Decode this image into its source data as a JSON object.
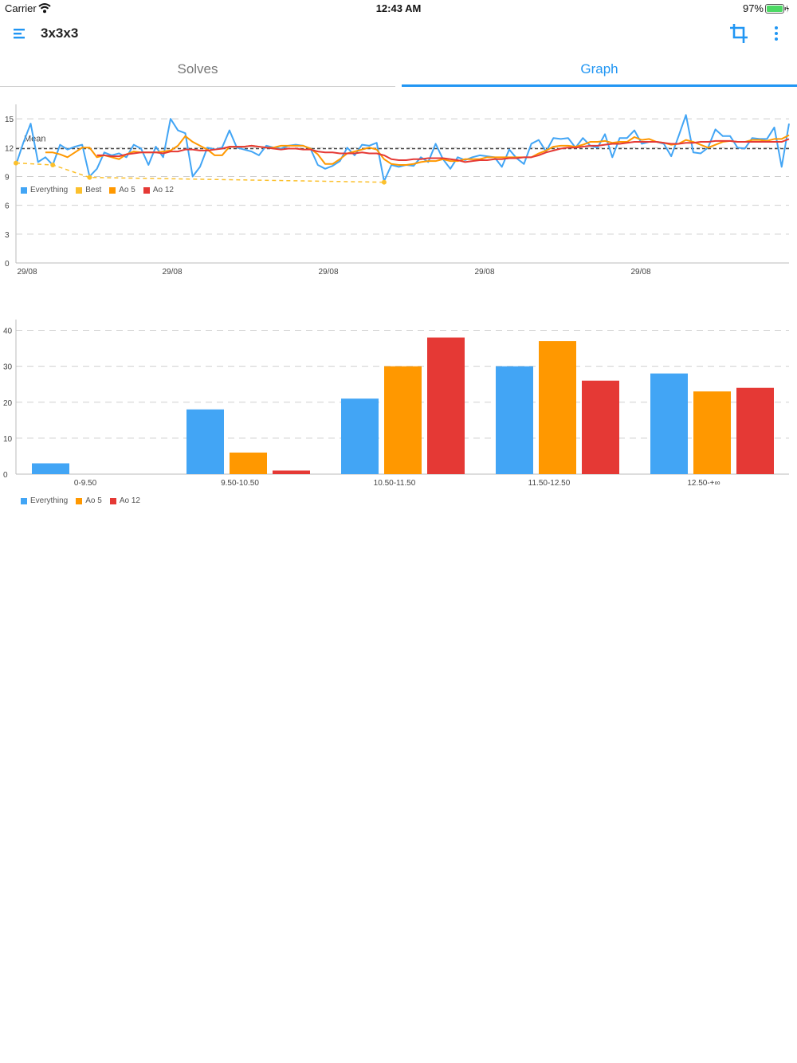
{
  "status_bar": {
    "carrier": "Carrier",
    "time": "12:43 AM",
    "battery": "97%"
  },
  "app_bar": {
    "title": "3x3x3",
    "icons": [
      "menu-icon",
      "crop-icon",
      "more-vert-icon"
    ]
  },
  "tabs": [
    {
      "label": "Solves",
      "selected": false
    },
    {
      "label": "Graph",
      "selected": true
    }
  ],
  "colors": {
    "accent": "#2196f3",
    "everything": "#42a5f5",
    "best": "#fbc02d",
    "ao5": "#ff9800",
    "ao12": "#e53935"
  },
  "chart_data": [
    {
      "type": "line",
      "x_tick_labels": [
        "29/08",
        "29/08",
        "29/08",
        "29/08",
        "29/08"
      ],
      "yticks": [
        0,
        3,
        6,
        9,
        12,
        15
      ],
      "ylim": [
        0,
        16.5
      ],
      "mean": {
        "label": "Mean",
        "value": 11.9
      },
      "legend": [
        "Everything",
        "Best",
        "Ao 5",
        "Ao 12"
      ],
      "series": [
        {
          "name": "Everything",
          "values": [
            10.2,
            12.5,
            14.5,
            10.5,
            11,
            10.2,
            12.3,
            11.8,
            12.1,
            12.3,
            9,
            9.8,
            11.5,
            11.2,
            11.4,
            11,
            12.3,
            11.9,
            10.2,
            12.1,
            11,
            15,
            13.8,
            13.5,
            9,
            10,
            12,
            11.8,
            12,
            13.8,
            12,
            11.8,
            11.6,
            11.2,
            12.2,
            12,
            11.9,
            12.2,
            12.3,
            12.2,
            11.9,
            10.2,
            9.8,
            10.1,
            10.6,
            12,
            11.2,
            12.3,
            12.2,
            12.5,
            8.5,
            10.2,
            10,
            10.2,
            10.1,
            11,
            10.5,
            12.4,
            10.8,
            9.8,
            11,
            10.7,
            11,
            11.2,
            11.1,
            11,
            10,
            11.8,
            10.9,
            10.3,
            12.4,
            12.8,
            11.6,
            13,
            12.9,
            13,
            12,
            13,
            12.2,
            12,
            13.4,
            11,
            13,
            13,
            13.8,
            12.4,
            12.6,
            12.6,
            12.4,
            11.1,
            13.2,
            15.4,
            11.5,
            11.4,
            12,
            13.9,
            13.2,
            13.2,
            12,
            11.9,
            13,
            12.9,
            12.9,
            14.1,
            10,
            14.5
          ]
        },
        {
          "name": "Best",
          "x_index": [
            0,
            5,
            10,
            50
          ],
          "values": [
            10.4,
            10.2,
            8.9,
            8.4
          ]
        },
        {
          "name": "Ao 5",
          "values": [
            null,
            null,
            null,
            null,
            11.5,
            11.5,
            11.3,
            11,
            11.5,
            12,
            12,
            11,
            11.2,
            11,
            10.8,
            11.3,
            11.6,
            11.5,
            11.5,
            11.5,
            11.6,
            11.7,
            12.2,
            13.2,
            12.6,
            12.2,
            11.8,
            11.2,
            11.2,
            12.1,
            12.1,
            12.1,
            12.2,
            12.1,
            12.0,
            12.0,
            12.2,
            12.2,
            12.2,
            12.2,
            11.9,
            11.3,
            10.3,
            10.3,
            10.8,
            11.4,
            11.6,
            11.8,
            12,
            11.8,
            10.8,
            10.3,
            10.2,
            10.2,
            10.3,
            10.5,
            10.6,
            10.6,
            10.8,
            10.6,
            10.6,
            10.8,
            10.8,
            10.8,
            11,
            11,
            11,
            11,
            11,
            11,
            11,
            11.4,
            11.7,
            12.1,
            12.2,
            12.2,
            12.1,
            12.3,
            12.6,
            12.6,
            12.7,
            12.5,
            12.6,
            12.6,
            13.1,
            12.8,
            12.9,
            12.6,
            12.5,
            12.3,
            12.4,
            12.8,
            12.6,
            12.3,
            12,
            12.3,
            12.6,
            12.7,
            12.6,
            12.6,
            12.8,
            12.8,
            12.7,
            12.9,
            12.9,
            13.3
          ]
        },
        {
          "name": "Ao 12",
          "values": [
            null,
            null,
            null,
            null,
            null,
            null,
            null,
            null,
            null,
            null,
            null,
            11.2,
            11.2,
            11.1,
            11.1,
            11.3,
            11.4,
            11.5,
            11.5,
            11.5,
            11.4,
            11.6,
            11.6,
            11.8,
            11.8,
            11.7,
            11.7,
            11.8,
            11.9,
            12.1,
            12.1,
            12.1,
            12.2,
            12.1,
            12.0,
            11.9,
            11.8,
            11.9,
            11.9,
            11.8,
            11.8,
            11.6,
            11.5,
            11.5,
            11.4,
            11.4,
            11.4,
            11.5,
            11.4,
            11.4,
            11.2,
            10.8,
            10.7,
            10.7,
            10.8,
            10.8,
            10.9,
            10.9,
            10.9,
            10.8,
            10.7,
            10.5,
            10.6,
            10.7,
            10.7,
            10.8,
            10.8,
            10.9,
            10.9,
            11,
            11,
            11.2,
            11.5,
            11.7,
            11.9,
            12,
            12,
            12.1,
            12.2,
            12.2,
            12.3,
            12.4,
            12.4,
            12.5,
            12.6,
            12.6,
            12.6,
            12.6,
            12.5,
            12.4,
            12.4,
            12.5,
            12.5,
            12.6,
            12.6,
            12.7,
            12.7,
            12.7,
            12.6,
            12.6,
            12.6,
            12.6,
            12.6,
            12.6,
            12.6,
            12.9
          ]
        }
      ]
    },
    {
      "type": "bar",
      "categories": [
        "0-9.50",
        "9.50-10.50",
        "10.50-11.50",
        "11.50-12.50",
        "12.50-+∞"
      ],
      "yticks": [
        0,
        10,
        20,
        30,
        40
      ],
      "ylim": [
        0,
        43
      ],
      "legend": [
        "Everything",
        "Ao 5",
        "Ao 12"
      ],
      "series": [
        {
          "name": "Everything",
          "values": [
            3,
            18,
            21,
            30,
            28
          ]
        },
        {
          "name": "Ao 5",
          "values": [
            0,
            6,
            30,
            37,
            23
          ]
        },
        {
          "name": "Ao 12",
          "values": [
            0,
            1,
            38,
            26,
            24
          ]
        }
      ]
    }
  ]
}
